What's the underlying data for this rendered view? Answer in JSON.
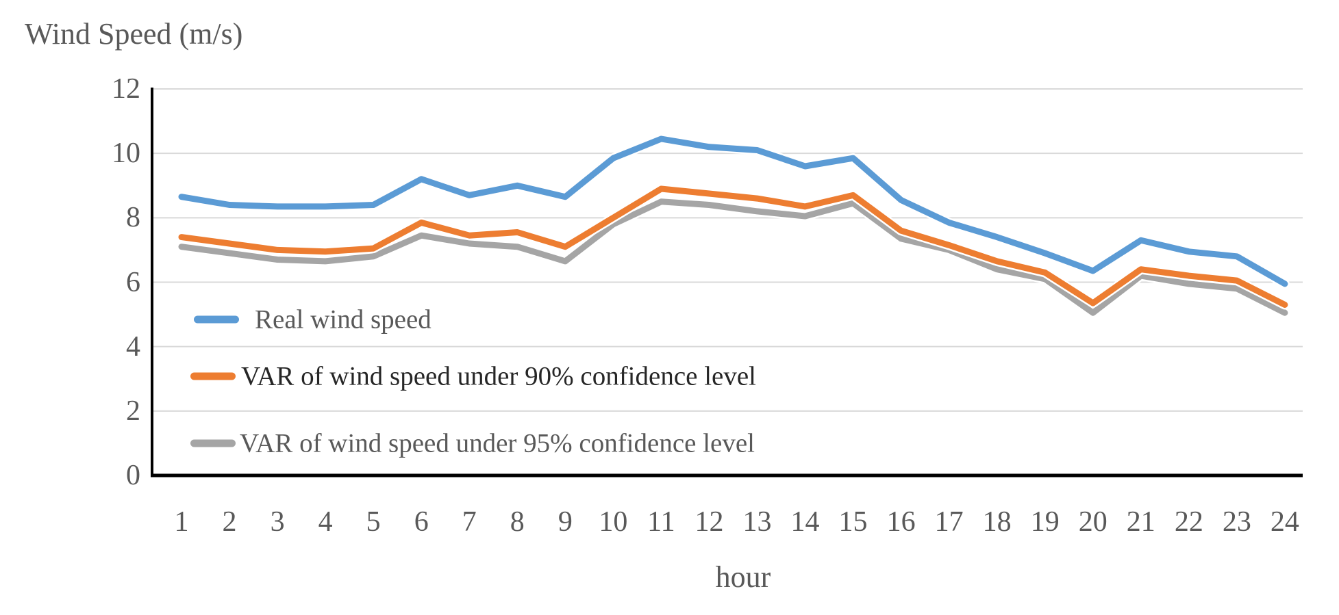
{
  "title": "Wind Speed (m/s)",
  "chart_data": {
    "type": "line",
    "title": "Wind Speed (m/s)",
    "xlabel": "hour",
    "ylabel": "Wind Speed (m/s)",
    "x": [
      1,
      2,
      3,
      4,
      5,
      6,
      7,
      8,
      9,
      10,
      11,
      12,
      13,
      14,
      15,
      16,
      17,
      18,
      19,
      20,
      21,
      22,
      23,
      24
    ],
    "x_tick_labels": [
      "1",
      "2",
      "3",
      "4",
      "5",
      "6",
      "7",
      "8",
      "9",
      "10",
      "11",
      "12",
      "13",
      "14",
      "15",
      "16",
      "17",
      "18",
      "19",
      "20",
      "21",
      "22",
      "23",
      "24"
    ],
    "y_ticks": [
      0,
      2,
      4,
      6,
      8,
      10,
      12
    ],
    "ylim": [
      0,
      12
    ],
    "grid": true,
    "legend_position": "inside-left",
    "series": [
      {
        "name": "Real wind speed",
        "color": "#5B9BD5",
        "values": [
          8.65,
          8.4,
          8.35,
          8.35,
          8.4,
          9.2,
          8.7,
          9.0,
          8.65,
          9.85,
          10.45,
          10.2,
          10.1,
          9.6,
          9.85,
          8.55,
          7.85,
          7.4,
          6.9,
          6.35,
          7.3,
          6.95,
          6.8,
          5.95
        ]
      },
      {
        "name": "VAR of wind speed under 90% confidence level",
        "color": "#ED7D31",
        "values": [
          7.4,
          7.2,
          7.0,
          6.95,
          7.05,
          7.85,
          7.45,
          7.55,
          7.1,
          8.0,
          8.9,
          8.75,
          8.6,
          8.35,
          8.7,
          7.6,
          7.15,
          6.65,
          6.3,
          5.35,
          6.4,
          6.2,
          6.05,
          5.3
        ]
      },
      {
        "name": "VAR of wind speed under 95% confidence level",
        "color": "#A5A5A5",
        "values": [
          7.1,
          6.9,
          6.7,
          6.65,
          6.8,
          7.45,
          7.2,
          7.1,
          6.65,
          7.8,
          8.5,
          8.4,
          8.2,
          8.05,
          8.45,
          7.35,
          7.0,
          6.4,
          6.1,
          5.05,
          6.2,
          5.95,
          5.8,
          5.05
        ]
      }
    ]
  },
  "colors": {
    "background": "#FFFFFF",
    "gridline": "#D9D9D9",
    "axis_line": "#000000",
    "axis_text": "#595959",
    "legend_text": [
      "#595959",
      "#262626",
      "#595959"
    ]
  }
}
